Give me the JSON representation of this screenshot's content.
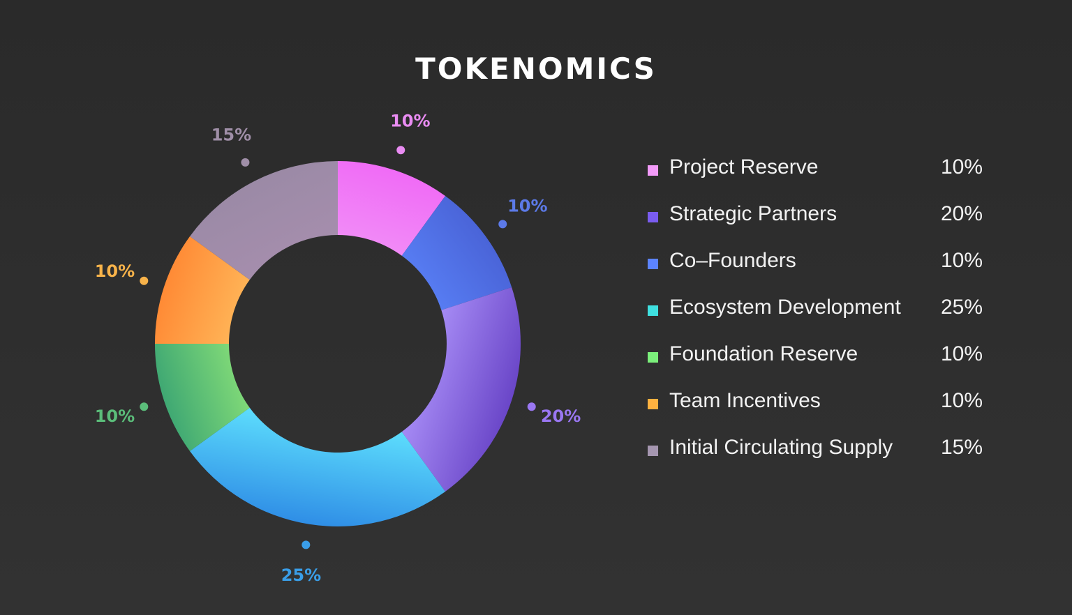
{
  "title": "TOKENOMICS",
  "chart_data": {
    "type": "pie",
    "variant": "donut",
    "title": "TOKENOMICS",
    "categories": [
      "Project Reserve",
      "Strategic Partners",
      "Co-Founders",
      "Ecosystem Development",
      "Foundation Reserve",
      "Team Incentives",
      "Initial Circulating Supply"
    ],
    "values": [
      10,
      20,
      10,
      25,
      10,
      10,
      15
    ],
    "value_labels": [
      "10%",
      "20%",
      "10%",
      "25%",
      "10%",
      "10%",
      "15%"
    ],
    "legend_position": "right",
    "slices_clockwise_from_top": [
      {
        "category": "Project Reserve",
        "value": 10,
        "label": "10%",
        "color": "#f29af8",
        "color_dark": "#f06bf6",
        "label_color": "#e98cf2"
      },
      {
        "category": "Co-Founders",
        "value": 10,
        "label": "10%",
        "color": "#5d88ff",
        "color_dark": "#4a64d8",
        "label_color": "#5c7ae8"
      },
      {
        "category": "Strategic Partners",
        "value": 20,
        "label": "20%",
        "color": "#b49bff",
        "color_dark": "#6a46c8",
        "label_color": "#9a77f2"
      },
      {
        "category": "Ecosystem Development",
        "value": 25,
        "label": "25%",
        "color": "#62e6ff",
        "color_dark": "#2f8ee6",
        "label_color": "#3a9ee8"
      },
      {
        "category": "Foundation Reserve",
        "value": 10,
        "label": "10%",
        "color": "#9ef07a",
        "color_dark": "#3fa873",
        "label_color": "#5bbd7a"
      },
      {
        "category": "Team Incentives",
        "value": 10,
        "label": "10%",
        "color": "#ffc766",
        "color_dark": "#ff8a35",
        "label_color": "#f8b34a"
      },
      {
        "category": "Initial Circulating Supply",
        "value": 15,
        "label": "15%",
        "color": "#a98faf",
        "color_dark": "#9b8aa6",
        "label_color": "#a08fa8"
      }
    ]
  },
  "legend": {
    "items": [
      {
        "label": "Project Reserve",
        "value": "10%",
        "color": "#f29af8"
      },
      {
        "label": "Strategic Partners",
        "value": "20%",
        "color": "#7a5cf0"
      },
      {
        "label": "Co–Founders",
        "value": "10%",
        "color": "#5c84ff"
      },
      {
        "label": "Ecosystem Development",
        "value": "25%",
        "color": "#3fe0e0"
      },
      {
        "label": "Foundation Reserve",
        "value": "10%",
        "color": "#7bef7b"
      },
      {
        "label": "Team Incentives",
        "value": "10%",
        "color": "#ffb240"
      },
      {
        "label": "Initial Circulating Supply",
        "value": "15%",
        "color": "#a596b0"
      }
    ]
  }
}
